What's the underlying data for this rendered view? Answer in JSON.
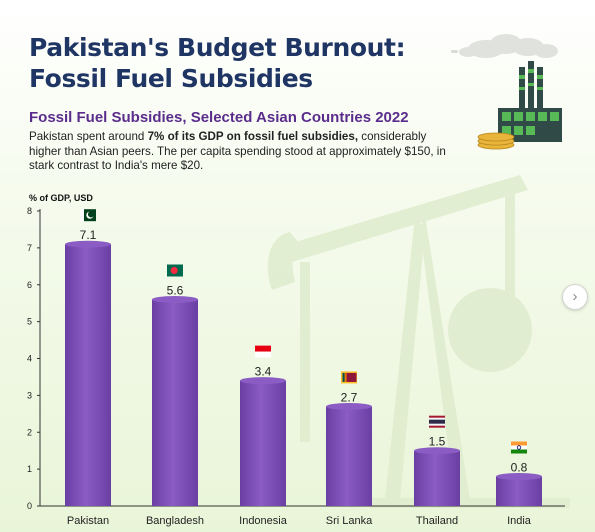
{
  "header": {
    "title": "Pakistan's Budget Burnout: Fossil Fuel Subsidies",
    "subtitle": "Fossil Fuel Subsidies, Selected Asian Countries 2022",
    "desc_part1": "Pakistan spent around ",
    "desc_bold": "7% of its GDP on fossil fuel subsidies,",
    "desc_part2": " considerably higher than Asian peers. The per capita spending stood at approximately $150, in stark contrast to India's mere $20."
  },
  "colors": {
    "bar": "#6a3fa3",
    "bar_light": "#8a5cc4",
    "title": "#1f3564",
    "subtitle": "#5a2d8c"
  },
  "nav": {
    "next_icon": "chevron-right-icon",
    "next_glyph": "›"
  },
  "chart_data": {
    "type": "bar",
    "title": "Fossil Fuel Subsidies, Selected Asian Countries 2022",
    "ylabel": "% of GDP, USD",
    "categories": [
      "Pakistan",
      "Bangladesh",
      "Indonesia",
      "Sri Lanka",
      "Thailand",
      "India"
    ],
    "values": [
      7.1,
      5.6,
      3.4,
      2.7,
      1.5,
      0.8
    ],
    "value_labels": [
      "7.1",
      "5.6",
      "3.4",
      "2.7",
      "1.5",
      "0.8"
    ],
    "ylim": [
      0,
      8
    ],
    "yticks": [
      0,
      1,
      2,
      3,
      4,
      5,
      6,
      7,
      8
    ],
    "flags": [
      "pakistan-flag-icon",
      "bangladesh-flag-icon",
      "indonesia-flag-icon",
      "sri-lanka-flag-icon",
      "thailand-flag-icon",
      "india-flag-icon"
    ],
    "grid": false,
    "legend": "none"
  }
}
